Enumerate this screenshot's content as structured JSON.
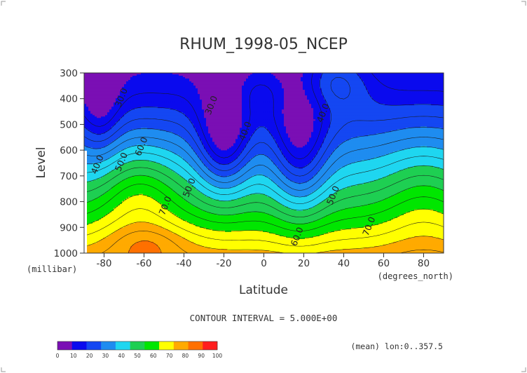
{
  "chart_data": {
    "type": "contour",
    "title": "RHUM_1998-05_NCEP",
    "xlabel": "Latitude",
    "ylabel": "Level",
    "x_unit_label": "(degrees_north)",
    "y_unit_label": "(millibar)",
    "xlim": [
      -90,
      90
    ],
    "ylim": [
      1000,
      300
    ],
    "x_ticks": [
      "-80",
      "-60",
      "-40",
      "-20",
      "0",
      "20",
      "40",
      "60",
      "80"
    ],
    "y_ticks": [
      "300",
      "400",
      "500",
      "600",
      "700",
      "800",
      "900",
      "1000"
    ],
    "contour_interval_label": "CONTOUR INTERVAL = 5.000E+00",
    "averaging_note": "(mean) lon:0..357.5",
    "contour_labels": [
      {
        "text": "30.0",
        "lat": -70,
        "lev": 400
      },
      {
        "text": "30.0",
        "lat": -25,
        "lev": 430
      },
      {
        "text": "40.0",
        "lat": -8,
        "lev": 530
      },
      {
        "text": "40.0",
        "lat": 31,
        "lev": 460
      },
      {
        "text": "40.0",
        "lat": -82,
        "lev": 660
      },
      {
        "text": "50.0",
        "lat": -70,
        "lev": 650
      },
      {
        "text": "60.0",
        "lat": -60,
        "lev": 590
      },
      {
        "text": "50.0",
        "lat": -36,
        "lev": 750
      },
      {
        "text": "70.0",
        "lat": -48,
        "lev": 820
      },
      {
        "text": "50.0",
        "lat": 36,
        "lev": 780
      },
      {
        "text": "60.0",
        "lat": 18,
        "lev": 940
      },
      {
        "text": "70.0",
        "lat": 54,
        "lev": 900
      }
    ],
    "colorbar": {
      "ticks": [
        "0",
        "10",
        "20",
        "30",
        "40",
        "50",
        "60",
        "70",
        "80",
        "90",
        "100"
      ],
      "colors": [
        "#7a0fb4",
        "#0a0aee",
        "#1447f2",
        "#1e8cf0",
        "#1fd6f0",
        "#1ecf52",
        "#00e600",
        "#ffff00",
        "#ffaa00",
        "#ff7000",
        "#ff1e1e"
      ]
    }
  }
}
